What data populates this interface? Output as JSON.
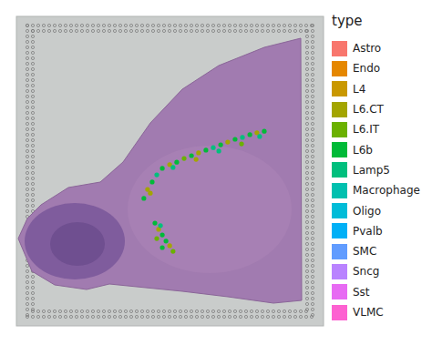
{
  "chart_data": {
    "type": "scatter",
    "legend_title": "type",
    "legend": "right",
    "tick_labels": false,
    "xlim": [
      0,
      100
    ],
    "ylim": [
      0,
      100
    ],
    "series": [
      {
        "name": "Astro",
        "color": "#F8766D",
        "x": [],
        "y": []
      },
      {
        "name": "Endo",
        "color": "#E58700",
        "x": [],
        "y": []
      },
      {
        "name": "L4",
        "color": "#C99800",
        "x": [],
        "y": []
      },
      {
        "name": "L6.CT",
        "color": "#A3A500",
        "x": [
          42.7,
          49.9,
          59.3,
          68.8,
          78.3,
          43.6,
          58.5,
          46.3,
          49.9
        ],
        "y": [
          44.1,
          52.1,
          55.9,
          59.4,
          62.4,
          42.9,
          53.8,
          31.2,
          25.9
        ]
      },
      {
        "name": "L6.IT",
        "color": "#6BB100",
        "x": [
          54.6,
          73.3,
          45.7,
          51.0
        ],
        "y": [
          54.1,
          58.8,
          28.2,
          24.1
        ]
      },
      {
        "name": "L6b",
        "color": "#00BA38",
        "x": [
          41.5,
          44.2,
          47.5,
          52.2,
          57.0,
          61.7,
          66.5,
          71.2,
          76.0,
          80.7,
          45.1,
          47.5,
          48.7,
          47.5
        ],
        "y": [
          41.2,
          46.5,
          50.9,
          52.9,
          55.0,
          56.8,
          58.5,
          60.3,
          61.8,
          62.9,
          33.2,
          29.4,
          27.4,
          25.3
        ]
      },
      {
        "name": "Lamp5",
        "color": "#00BF7D",
        "x": [
          45.7,
          64.1,
          73.6,
          51.0,
          65.9,
          79.2,
          46.9
        ],
        "y": [
          48.8,
          57.6,
          60.9,
          51.2,
          56.5,
          61.2,
          32.4
        ]
      },
      {
        "name": "Macrophage",
        "color": "#00C0AF",
        "x": [],
        "y": []
      },
      {
        "name": "Oligo",
        "color": "#00BCD8",
        "x": [],
        "y": []
      },
      {
        "name": "Pvalb",
        "color": "#00B0F6",
        "x": [],
        "y": []
      },
      {
        "name": "SMC",
        "color": "#619CFF",
        "x": [],
        "y": []
      },
      {
        "name": "Sncg",
        "color": "#B983FF",
        "x": [],
        "y": []
      },
      {
        "name": "Sst",
        "color": "#E76BF3",
        "x": [],
        "y": []
      },
      {
        "name": "VLMC",
        "color": "#FD61D1",
        "x": [],
        "y": []
      }
    ]
  }
}
